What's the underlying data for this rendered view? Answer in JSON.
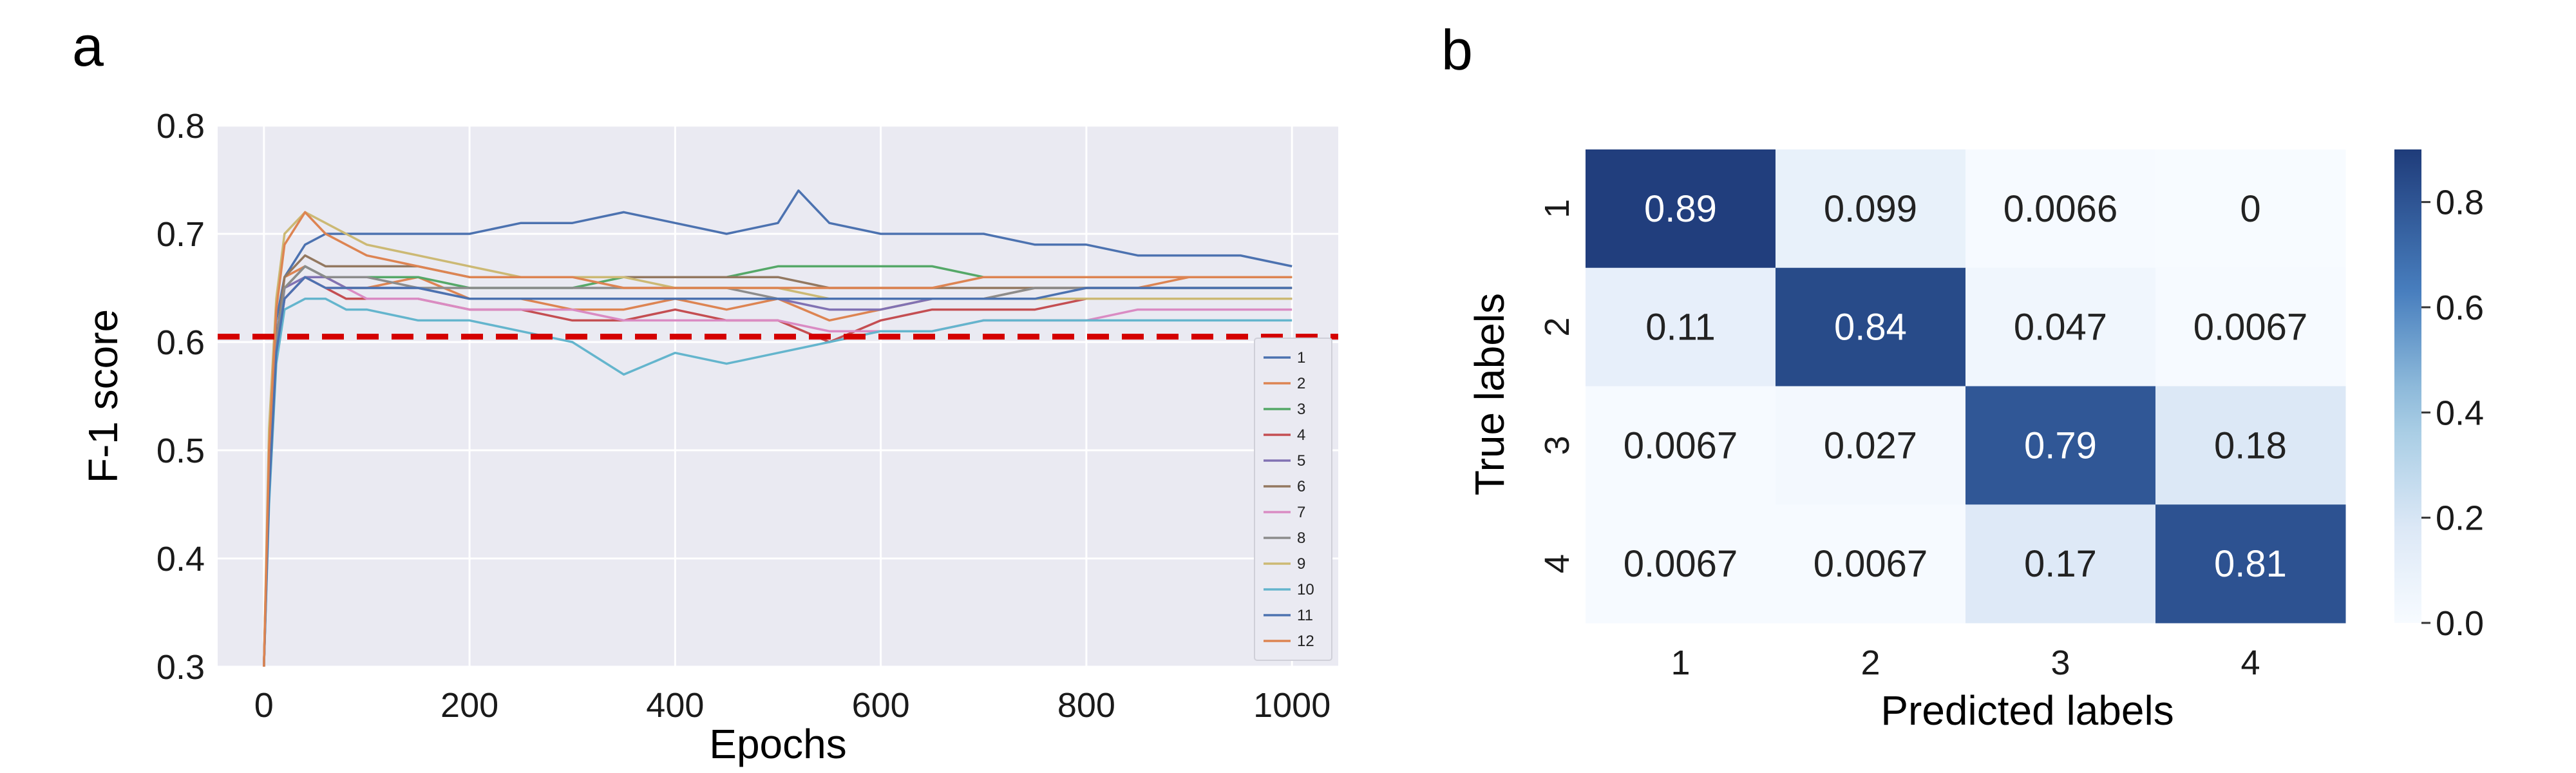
{
  "figure": {
    "panel_a_letter": "a",
    "panel_b_letter": "b"
  },
  "colors": {
    "plot_background": "#EAEAF2",
    "grid": "#FFFFFF",
    "threshold_line": "#D40000",
    "heatmap_low": "#F7FBFF",
    "heatmap_high": "#1F3C7A",
    "series": [
      "#4C72B0",
      "#DD8452",
      "#55A868",
      "#C44E52",
      "#8172B3",
      "#937860",
      "#DA8BC3",
      "#8C8C8C",
      "#CCB974",
      "#64B5CD",
      "#4C72B0",
      "#DD8452"
    ]
  },
  "chart_data": [
    {
      "type": "line",
      "panel": "a",
      "xlabel": "Epochs",
      "ylabel": "F-1 score",
      "xlim": [
        -45,
        1045
      ],
      "ylim": [
        0.3,
        0.8
      ],
      "xticks": [
        0,
        200,
        400,
        600,
        800,
        1000
      ],
      "yticks": [
        0.3,
        0.4,
        0.5,
        0.6,
        0.7,
        0.8
      ],
      "ytick_labels": [
        "0.3",
        "0.4",
        "0.5",
        "0.6",
        "0.7",
        "0.8"
      ],
      "grid": true,
      "legend_position": "lower-right",
      "threshold": {
        "y": 0.605,
        "style": "dashed"
      },
      "series": [
        {
          "name": "1",
          "x": [
            0,
            5,
            12,
            20,
            40,
            60,
            80,
            100,
            150,
            200,
            250,
            300,
            350,
            400,
            450,
            500,
            520,
            550,
            600,
            650,
            700,
            750,
            800,
            850,
            900,
            950,
            1000
          ],
          "y": [
            0.3,
            0.5,
            0.62,
            0.66,
            0.69,
            0.7,
            0.7,
            0.7,
            0.7,
            0.7,
            0.71,
            0.71,
            0.72,
            0.71,
            0.7,
            0.71,
            0.74,
            0.71,
            0.7,
            0.7,
            0.7,
            0.69,
            0.69,
            0.68,
            0.68,
            0.68,
            0.67
          ]
        },
        {
          "name": "2",
          "x": [
            0,
            5,
            12,
            20,
            40,
            60,
            80,
            100,
            150,
            200,
            250,
            300,
            350,
            400,
            450,
            500,
            550,
            600,
            650,
            700,
            750,
            800,
            850,
            900,
            950,
            1000
          ],
          "y": [
            0.3,
            0.49,
            0.6,
            0.66,
            0.67,
            0.66,
            0.65,
            0.65,
            0.66,
            0.64,
            0.64,
            0.63,
            0.63,
            0.64,
            0.63,
            0.64,
            0.62,
            0.63,
            0.64,
            0.64,
            0.65,
            0.65,
            0.65,
            0.66,
            0.66,
            0.66
          ]
        },
        {
          "name": "3",
          "x": [
            0,
            5,
            12,
            20,
            40,
            60,
            80,
            100,
            150,
            200,
            250,
            300,
            350,
            400,
            450,
            500,
            550,
            600,
            650,
            700,
            750,
            800,
            850,
            900,
            950,
            1000
          ],
          "y": [
            0.3,
            0.48,
            0.6,
            0.65,
            0.67,
            0.66,
            0.66,
            0.66,
            0.66,
            0.65,
            0.65,
            0.65,
            0.66,
            0.66,
            0.66,
            0.67,
            0.67,
            0.67,
            0.67,
            0.66,
            0.66,
            0.66,
            0.66,
            0.66,
            0.66,
            0.66
          ]
        },
        {
          "name": "4",
          "x": [
            0,
            5,
            12,
            20,
            40,
            60,
            80,
            100,
            150,
            200,
            250,
            300,
            350,
            400,
            450,
            500,
            550,
            600,
            650,
            700,
            750,
            800,
            850,
            900,
            950,
            1000
          ],
          "y": [
            0.3,
            0.47,
            0.59,
            0.64,
            0.66,
            0.65,
            0.64,
            0.64,
            0.64,
            0.63,
            0.63,
            0.62,
            0.62,
            0.63,
            0.62,
            0.62,
            0.6,
            0.62,
            0.63,
            0.63,
            0.63,
            0.64,
            0.64,
            0.64,
            0.64,
            0.64
          ]
        },
        {
          "name": "5",
          "x": [
            0,
            5,
            12,
            20,
            40,
            60,
            80,
            100,
            150,
            200,
            250,
            300,
            350,
            400,
            450,
            500,
            550,
            600,
            650,
            700,
            750,
            800,
            850,
            900,
            950,
            1000
          ],
          "y": [
            0.3,
            0.46,
            0.59,
            0.65,
            0.66,
            0.66,
            0.65,
            0.65,
            0.65,
            0.64,
            0.64,
            0.64,
            0.64,
            0.64,
            0.64,
            0.64,
            0.63,
            0.63,
            0.64,
            0.64,
            0.64,
            0.64,
            0.64,
            0.64,
            0.64,
            0.64
          ]
        },
        {
          "name": "6",
          "x": [
            0,
            5,
            12,
            20,
            40,
            60,
            80,
            100,
            150,
            200,
            250,
            300,
            350,
            400,
            450,
            500,
            550,
            600,
            650,
            700,
            750,
            800,
            850,
            900,
            950,
            1000
          ],
          "y": [
            0.3,
            0.48,
            0.6,
            0.66,
            0.68,
            0.67,
            0.67,
            0.67,
            0.67,
            0.66,
            0.66,
            0.66,
            0.66,
            0.66,
            0.66,
            0.66,
            0.65,
            0.65,
            0.65,
            0.65,
            0.65,
            0.65,
            0.65,
            0.65,
            0.65,
            0.65
          ]
        },
        {
          "name": "7",
          "x": [
            0,
            5,
            12,
            20,
            40,
            60,
            80,
            100,
            150,
            200,
            250,
            300,
            350,
            400,
            450,
            500,
            550,
            600,
            650,
            700,
            750,
            800,
            850,
            900,
            950,
            1000
          ],
          "y": [
            0.3,
            0.47,
            0.59,
            0.64,
            0.66,
            0.65,
            0.65,
            0.64,
            0.64,
            0.63,
            0.63,
            0.63,
            0.62,
            0.62,
            0.62,
            0.62,
            0.61,
            0.61,
            0.61,
            0.62,
            0.62,
            0.62,
            0.63,
            0.63,
            0.63,
            0.63
          ]
        },
        {
          "name": "8",
          "x": [
            0,
            5,
            12,
            20,
            40,
            60,
            80,
            100,
            150,
            200,
            250,
            300,
            350,
            400,
            450,
            500,
            550,
            600,
            650,
            700,
            750,
            800,
            850,
            900,
            950,
            1000
          ],
          "y": [
            0.3,
            0.47,
            0.6,
            0.65,
            0.67,
            0.66,
            0.66,
            0.66,
            0.65,
            0.65,
            0.65,
            0.65,
            0.65,
            0.65,
            0.65,
            0.64,
            0.64,
            0.64,
            0.64,
            0.64,
            0.65,
            0.65,
            0.65,
            0.65,
            0.65,
            0.65
          ]
        },
        {
          "name": "9",
          "x": [
            0,
            5,
            12,
            20,
            40,
            60,
            80,
            100,
            150,
            200,
            250,
            300,
            350,
            400,
            450,
            500,
            550,
            600,
            650,
            700,
            750,
            800,
            850,
            900,
            950,
            1000
          ],
          "y": [
            0.3,
            0.52,
            0.64,
            0.7,
            0.72,
            0.71,
            0.7,
            0.69,
            0.68,
            0.67,
            0.66,
            0.66,
            0.66,
            0.65,
            0.65,
            0.65,
            0.64,
            0.64,
            0.64,
            0.64,
            0.64,
            0.64,
            0.64,
            0.64,
            0.64,
            0.64
          ]
        },
        {
          "name": "10",
          "x": [
            0,
            5,
            12,
            20,
            40,
            60,
            80,
            100,
            150,
            200,
            250,
            300,
            350,
            400,
            450,
            500,
            550,
            600,
            650,
            700,
            750,
            800,
            850,
            900,
            950,
            1000
          ],
          "y": [
            0.3,
            0.45,
            0.58,
            0.63,
            0.64,
            0.64,
            0.63,
            0.63,
            0.62,
            0.62,
            0.61,
            0.6,
            0.57,
            0.59,
            0.58,
            0.59,
            0.6,
            0.61,
            0.61,
            0.62,
            0.62,
            0.62,
            0.62,
            0.62,
            0.62,
            0.62
          ]
        },
        {
          "name": "11",
          "x": [
            0,
            5,
            12,
            20,
            40,
            60,
            80,
            100,
            150,
            200,
            250,
            300,
            350,
            400,
            450,
            500,
            550,
            600,
            650,
            700,
            750,
            800,
            850,
            900,
            950,
            1000
          ],
          "y": [
            0.3,
            0.46,
            0.59,
            0.64,
            0.66,
            0.65,
            0.65,
            0.65,
            0.65,
            0.64,
            0.64,
            0.64,
            0.64,
            0.64,
            0.64,
            0.64,
            0.64,
            0.64,
            0.64,
            0.64,
            0.64,
            0.65,
            0.65,
            0.65,
            0.65,
            0.65
          ]
        },
        {
          "name": "12",
          "x": [
            0,
            5,
            12,
            20,
            40,
            60,
            80,
            100,
            150,
            200,
            250,
            300,
            350,
            400,
            450,
            500,
            550,
            600,
            650,
            700,
            750,
            800,
            850,
            900,
            950,
            1000
          ],
          "y": [
            0.3,
            0.5,
            0.63,
            0.69,
            0.72,
            0.7,
            0.69,
            0.68,
            0.67,
            0.66,
            0.66,
            0.66,
            0.65,
            0.65,
            0.65,
            0.65,
            0.65,
            0.65,
            0.65,
            0.66,
            0.66,
            0.66,
            0.66,
            0.66,
            0.66,
            0.66
          ]
        }
      ]
    },
    {
      "type": "heatmap",
      "panel": "b",
      "xlabel": "Predicted labels",
      "ylabel": "True labels",
      "x_categories": [
        "1",
        "2",
        "3",
        "4"
      ],
      "y_categories": [
        "1",
        "2",
        "3",
        "4"
      ],
      "values": [
        [
          0.89,
          0.099,
          0.0066,
          0
        ],
        [
          0.11,
          0.84,
          0.047,
          0.0067
        ],
        [
          0.0067,
          0.027,
          0.79,
          0.18
        ],
        [
          0.0067,
          0.0067,
          0.17,
          0.81
        ]
      ],
      "cell_labels": [
        [
          "0.89",
          "0.099",
          "0.0066",
          "0"
        ],
        [
          "0.11",
          "0.84",
          "0.047",
          "0.0067"
        ],
        [
          "0.0067",
          "0.027",
          "0.79",
          "0.18"
        ],
        [
          "0.0067",
          "0.0067",
          "0.17",
          "0.81"
        ]
      ],
      "colorbar": {
        "vmin": 0.0,
        "vmax": 0.9,
        "ticks": [
          0.0,
          0.2,
          0.4,
          0.6,
          0.8
        ],
        "tick_labels": [
          "0.0",
          "0.2",
          "0.4",
          "0.6",
          "0.8"
        ]
      }
    }
  ]
}
